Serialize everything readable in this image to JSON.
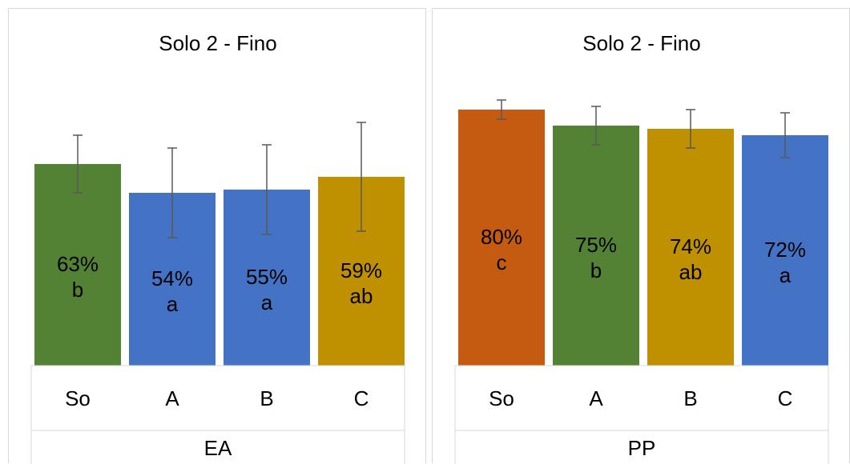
{
  "chart_data": [
    {
      "type": "bar",
      "title": "Solo 2 - Fino",
      "group_label": "EA",
      "categories": [
        "So",
        "A",
        "B",
        "C"
      ],
      "values": [
        63,
        54,
        55,
        59
      ],
      "errors": [
        9,
        14,
        14,
        17
      ],
      "value_labels": [
        "63%",
        "54%",
        "55%",
        "59%"
      ],
      "letters": [
        "b",
        "a",
        "a",
        "ab"
      ],
      "colors": [
        "#548235",
        "#4472C4",
        "#4472C4",
        "#BF9000"
      ],
      "ylim": [
        0,
        75
      ],
      "grid": false,
      "legend": false
    },
    {
      "type": "bar",
      "title": "Solo 2 - Fino",
      "group_label": "PP",
      "categories": [
        "So",
        "A",
        "B",
        "C"
      ],
      "values": [
        80,
        75,
        74,
        72
      ],
      "errors": [
        3,
        6,
        6,
        7
      ],
      "value_labels": [
        "80%",
        "75%",
        "74%",
        "72%"
      ],
      "letters": [
        "c",
        "b",
        "ab",
        "a"
      ],
      "colors": [
        "#C55A11",
        "#548235",
        "#BF9000",
        "#4472C4"
      ],
      "ylim": [
        0,
        75
      ],
      "grid": false,
      "legend": false
    }
  ]
}
